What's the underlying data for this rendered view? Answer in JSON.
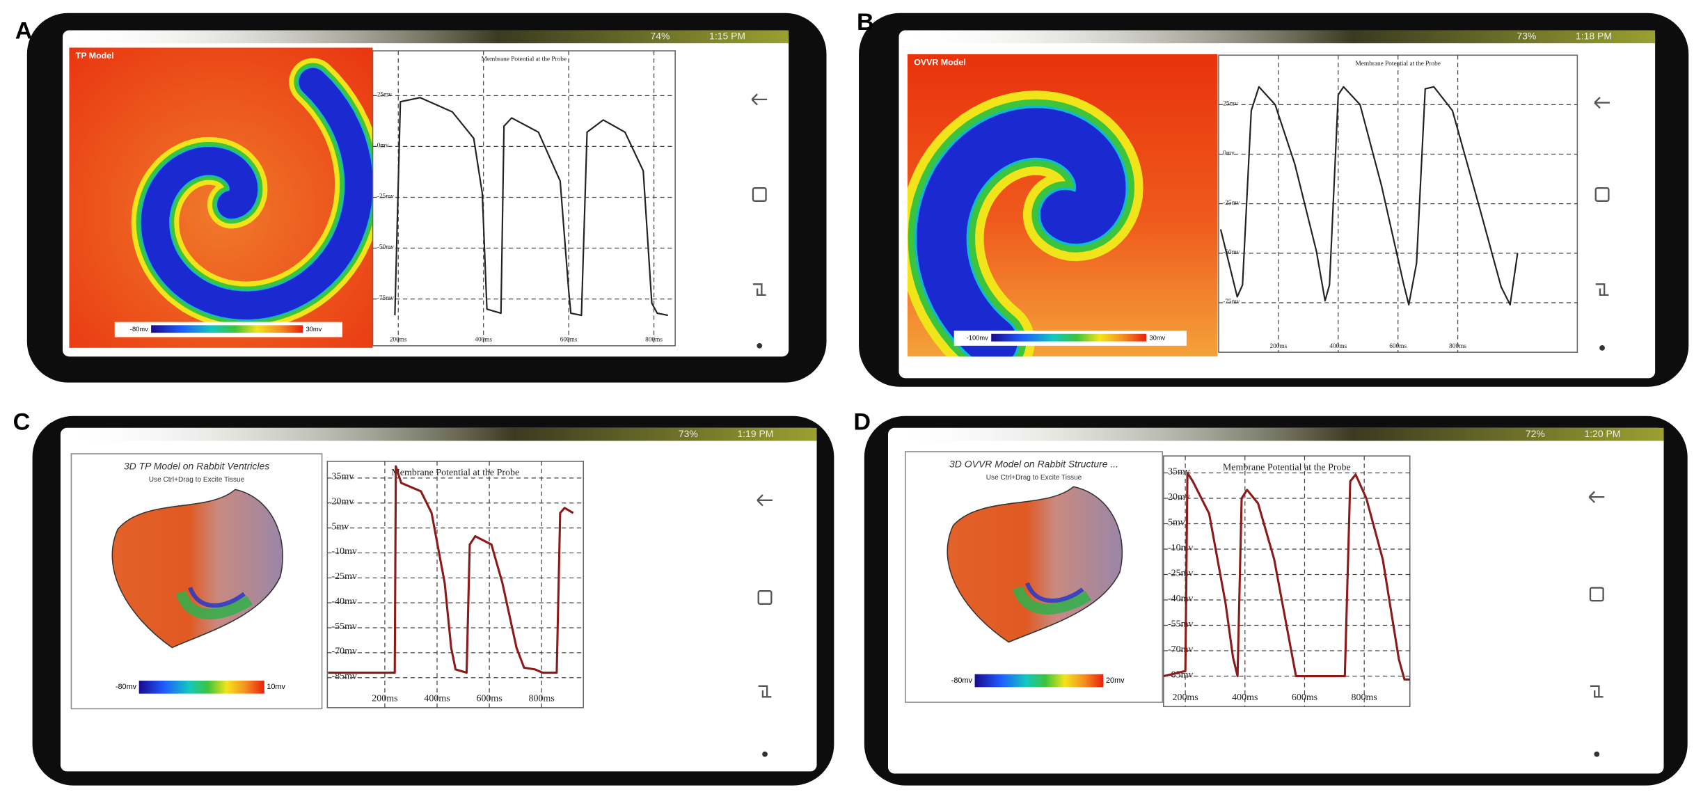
{
  "panels": [
    {
      "label": "A",
      "battery": "74%",
      "time": "1:15 PM",
      "model_title": "TP Model",
      "colorbar_min": "-80mv",
      "colorbar_max": "30mv"
    },
    {
      "label": "B",
      "battery": "73%",
      "time": "1:18 PM",
      "model_title": "OVVR Model",
      "colorbar_min": "-100mv",
      "colorbar_max": "30mv"
    },
    {
      "label": "C",
      "battery": "73%",
      "time": "1:19 PM",
      "model_title": "3D TP Model on Rabbit Ventricles",
      "model_subtitle": "Use Ctrl+Drag to Excite Tissue",
      "colorbar_min": "-80mv",
      "colorbar_max": "10mv"
    },
    {
      "label": "D",
      "battery": "72%",
      "time": "1:20 PM",
      "model_title": "3D OVVR Model on Rabbit Structure ...",
      "model_subtitle": "Use Ctrl+Drag to Excite Tissue",
      "colorbar_min": "-80mv",
      "colorbar_max": "20mv"
    }
  ],
  "chart_data": [
    {
      "type": "line",
      "title": "Membrane Potential at the Probe",
      "color": "#222222",
      "grid": true,
      "x": [
        192,
        205,
        251,
        327,
        377,
        397,
        408,
        441,
        448,
        466,
        529,
        580,
        600,
        605,
        630,
        643,
        681,
        732,
        775,
        795,
        808,
        833
      ],
      "values": [
        -83,
        22,
        24,
        17,
        4,
        -23,
        -80,
        -82,
        10,
        14,
        7,
        -17,
        -71,
        -82,
        -83,
        7,
        13,
        7,
        -12,
        -77,
        -82,
        -83
      ],
      "xlim": [
        140,
        850
      ],
      "ylim": [
        -98,
        47
      ],
      "xticks": [
        {
          "value": 200,
          "label": "200ms"
        },
        {
          "value": 400,
          "label": "400ms"
        },
        {
          "value": 600,
          "label": "600ms"
        },
        {
          "value": 800,
          "label": "800ms"
        }
      ],
      "yticks": [
        {
          "value": 25,
          "label": "25mv"
        },
        {
          "value": 0,
          "label": "0mv"
        },
        {
          "value": -25,
          "label": "-25mv"
        },
        {
          "value": -50,
          "label": "-50mv"
        },
        {
          "value": -75,
          "label": "-75mv"
        }
      ]
    },
    {
      "type": "line",
      "title": "Membrane Potential at the Probe",
      "color": "#222222",
      "grid": true,
      "x": [
        7,
        62,
        80,
        109,
        135,
        189,
        255,
        327,
        356,
        371,
        400,
        418,
        473,
        545,
        618,
        636,
        662,
        691,
        720,
        782,
        873,
        945,
        975,
        1000
      ],
      "values": [
        -38,
        -72,
        -66,
        22,
        34,
        25,
        -5,
        -49,
        -74,
        -66,
        30,
        34,
        25,
        -16,
        -65,
        -76,
        -55,
        33,
        34,
        22,
        -27,
        -67,
        -76,
        -50
      ],
      "xlim": [
        0,
        1200
      ],
      "ylim": [
        -100,
        50
      ],
      "xticks": [
        {
          "value": 200,
          "label": "200ms"
        },
        {
          "value": 400,
          "label": "400ms"
        },
        {
          "value": 600,
          "label": "600ms"
        },
        {
          "value": 800,
          "label": "800ms"
        }
      ],
      "yticks": [
        {
          "value": 25,
          "label": "25mv"
        },
        {
          "value": 0,
          "label": "0mv"
        },
        {
          "value": -25,
          "label": "-25mv"
        },
        {
          "value": -50,
          "label": "-50mv"
        },
        {
          "value": -75,
          "label": "-75mv"
        }
      ]
    },
    {
      "type": "line",
      "title": "Membrane Potential at the Probe",
      "color": "#8b1a1a",
      "grid": true,
      "x": [
        -17,
        238,
        242,
        263,
        338,
        379,
        429,
        454,
        471,
        513,
        525,
        546,
        608,
        650,
        704,
        733,
        775,
        804,
        858,
        871,
        888,
        921
      ],
      "values": [
        -82,
        -82,
        42,
        32,
        27,
        14,
        -28,
        -67,
        -80,
        -82,
        -5,
        0,
        -5,
        -28,
        -67,
        -79,
        -80,
        -82,
        -82,
        14,
        17,
        14
      ],
      "xlim": [
        -20,
        960
      ],
      "ylim": [
        -103,
        45
      ],
      "xticks": [
        {
          "value": 200,
          "label": "200ms"
        },
        {
          "value": 400,
          "label": "400ms"
        },
        {
          "value": 600,
          "label": "600ms"
        },
        {
          "value": 800,
          "label": "800ms"
        }
      ],
      "yticks": [
        {
          "value": 35,
          "label": "35mv"
        },
        {
          "value": 20,
          "label": "20mv"
        },
        {
          "value": 5,
          "label": "5mv"
        },
        {
          "value": -10,
          "label": "-10mv"
        },
        {
          "value": -25,
          "label": "-25mv"
        },
        {
          "value": -40,
          "label": "-40mv"
        },
        {
          "value": -55,
          "label": "-55mv"
        },
        {
          "value": -70,
          "label": "-70mv"
        },
        {
          "value": -85,
          "label": "-85mv"
        }
      ]
    },
    {
      "type": "line",
      "title": "Membrane Potential at the Probe",
      "color": "#8b1a1a",
      "grid": true,
      "x": [
        127,
        200,
        207,
        225,
        280,
        335,
        360,
        375,
        389,
        407,
        444,
        498,
        553,
        571,
        735,
        753,
        771,
        807,
        862,
        916,
        935,
        953
      ],
      "values": [
        -85,
        -82,
        35,
        30,
        11,
        -42,
        -74,
        -85,
        20,
        25,
        17,
        -16,
        -68,
        -85,
        -85,
        30,
        34,
        20,
        -16,
        -75,
        -87,
        -87
      ],
      "xlim": [
        127,
        953
      ],
      "ylim": [
        -103,
        45
      ],
      "xticks": [
        {
          "value": 200,
          "label": "200ms"
        },
        {
          "value": 400,
          "label": "400ms"
        },
        {
          "value": 600,
          "label": "600ms"
        },
        {
          "value": 800,
          "label": "800ms"
        }
      ],
      "yticks": [
        {
          "value": 35,
          "label": "35mv"
        },
        {
          "value": 20,
          "label": "20mv"
        },
        {
          "value": 5,
          "label": "5mv"
        },
        {
          "value": -10,
          "label": "-10mv"
        },
        {
          "value": -25,
          "label": "-25mv"
        },
        {
          "value": -40,
          "label": "-40mv"
        },
        {
          "value": -55,
          "label": "-55mv"
        },
        {
          "value": -70,
          "label": "-70mv"
        },
        {
          "value": -85,
          "label": "-85mv"
        }
      ]
    }
  ]
}
